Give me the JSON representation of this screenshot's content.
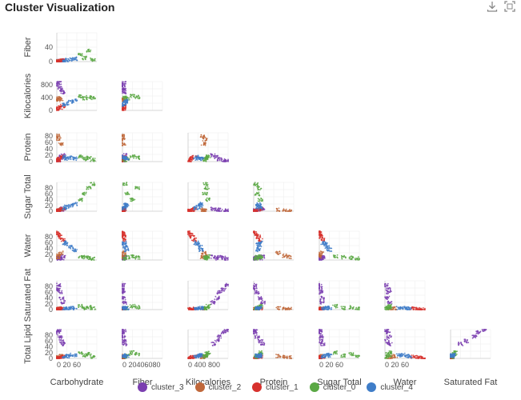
{
  "header": {
    "title": "Cluster Visualization",
    "download_icon": "download-icon",
    "fullscreen_icon": "fullscreen-icon"
  },
  "chart_data": {
    "type": "scatter",
    "kind": "scatter-matrix (lower triangle)",
    "variables": [
      "Carbohydrate",
      "Fiber",
      "Kilocalories",
      "Protein",
      "Sugar Total",
      "Water",
      "Saturated Fat",
      "Total Lipid"
    ],
    "x_variables": [
      "Carbohydrate",
      "Fiber",
      "Kilocalories",
      "Protein",
      "Sugar Total",
      "Water",
      "Saturated Fat"
    ],
    "y_variables": [
      "Fiber",
      "Kilocalories",
      "Protein",
      "Sugar Total",
      "Water",
      "Saturated Fat",
      "Total Lipid"
    ],
    "row_labels": [
      "Fiber",
      "Kilocalories",
      "Protein",
      "Sugar Total",
      "Water",
      "Saturated Fat",
      "Total Lipid"
    ],
    "col_labels": [
      "Carbohydrate",
      "Fiber",
      "Kilocalories",
      "Protein",
      "Sugar Total",
      "Water",
      "Saturated Fat"
    ],
    "ranges": {
      "Carbohydrate": [
        0,
        100
      ],
      "Fiber": [
        0,
        80
      ],
      "Kilocalories": [
        0,
        900
      ],
      "Protein": [
        0,
        90
      ],
      "Sugar Total": [
        0,
        100
      ],
      "Water": [
        0,
        100
      ],
      "Saturated Fat": [
        0,
        100
      ],
      "Total Lipid": [
        0,
        100
      ]
    },
    "y_ticks": {
      "Fiber": [
        "0",
        "40"
      ],
      "Kilocalories": [
        "0",
        "400",
        "800"
      ],
      "Protein": [
        "0",
        "20",
        "40",
        "60",
        "80"
      ],
      "Sugar Total": [
        "0",
        "20",
        "40",
        "60",
        "80"
      ],
      "Water": [
        "0",
        "20",
        "40",
        "60",
        "80"
      ],
      "Saturated Fat": [
        "0",
        "20",
        "40",
        "60",
        "80"
      ],
      "Total Lipid": [
        "0",
        "20",
        "40",
        "60",
        "80"
      ]
    },
    "x_ticks": {
      "Carbohydrate": "0 20  60",
      "Fiber": "0 20406080",
      "Kilocalories": "0  400 800",
      "Sugar Total": "0 20  60",
      "Water": "0 20  60"
    },
    "legend": {
      "placement": "bottom",
      "entries": [
        "cluster_3",
        "cluster_2",
        "cluster_1",
        "cluster_0",
        "cluster_4"
      ]
    },
    "series": [
      {
        "name": "cluster_3",
        "color": "#7b3fb0"
      },
      {
        "name": "cluster_2",
        "color": "#c0683b"
      },
      {
        "name": "cluster_1",
        "color": "#d7312d"
      },
      {
        "name": "cluster_0",
        "color": "#5aa844"
      },
      {
        "name": "cluster_4",
        "color": "#3f7dc8"
      }
    ],
    "grid": true,
    "sample_points": {
      "cluster_3": [
        {
          "Carbohydrate": 5,
          "Fiber": 2,
          "Kilocalories": 870,
          "Protein": 3,
          "Sugar Total": 2,
          "Water": 3,
          "Saturated Fat": 85,
          "Total Lipid": 98
        },
        {
          "Carbohydrate": 8,
          "Fiber": 1,
          "Kilocalories": 700,
          "Protein": 8,
          "Sugar Total": 4,
          "Water": 10,
          "Saturated Fat": 60,
          "Total Lipid": 75
        },
        {
          "Carbohydrate": 12,
          "Fiber": 3,
          "Kilocalories": 650,
          "Protein": 15,
          "Sugar Total": 6,
          "Water": 5,
          "Saturated Fat": 40,
          "Total Lipid": 60
        },
        {
          "Carbohydrate": 3,
          "Fiber": 0,
          "Kilocalories": 800,
          "Protein": 2,
          "Sugar Total": 1,
          "Water": 8,
          "Saturated Fat": 70,
          "Total Lipid": 90
        },
        {
          "Carbohydrate": 15,
          "Fiber": 4,
          "Kilocalories": 560,
          "Protein": 20,
          "Sugar Total": 8,
          "Water": 12,
          "Saturated Fat": 25,
          "Total Lipid": 50
        }
      ],
      "cluster_2": [
        {
          "Carbohydrate": 4,
          "Fiber": 1,
          "Kilocalories": 380,
          "Protein": 70,
          "Sugar Total": 2,
          "Water": 15,
          "Saturated Fat": 3,
          "Total Lipid": 5
        },
        {
          "Carbohydrate": 10,
          "Fiber": 2,
          "Kilocalories": 350,
          "Protein": 55,
          "Sugar Total": 5,
          "Water": 25,
          "Saturated Fat": 4,
          "Total Lipid": 8
        },
        {
          "Carbohydrate": 2,
          "Fiber": 0,
          "Kilocalories": 330,
          "Protein": 80,
          "Sugar Total": 1,
          "Water": 10,
          "Saturated Fat": 2,
          "Total Lipid": 3
        }
      ],
      "cluster_1": [
        {
          "Carbohydrate": 3,
          "Fiber": 1,
          "Kilocalories": 60,
          "Protein": 5,
          "Sugar Total": 2,
          "Water": 88,
          "Saturated Fat": 1,
          "Total Lipid": 2
        },
        {
          "Carbohydrate": 8,
          "Fiber": 2,
          "Kilocalories": 90,
          "Protein": 10,
          "Sugar Total": 4,
          "Water": 80,
          "Saturated Fat": 2,
          "Total Lipid": 4
        },
        {
          "Carbohydrate": 15,
          "Fiber": 3,
          "Kilocalories": 140,
          "Protein": 15,
          "Sugar Total": 8,
          "Water": 70,
          "Saturated Fat": 3,
          "Total Lipid": 6
        },
        {
          "Carbohydrate": 1,
          "Fiber": 0,
          "Kilocalories": 30,
          "Protein": 2,
          "Sugar Total": 1,
          "Water": 95,
          "Saturated Fat": 0,
          "Total Lipid": 1
        }
      ],
      "cluster_0": [
        {
          "Carbohydrate": 70,
          "Fiber": 10,
          "Kilocalories": 380,
          "Protein": 8,
          "Sugar Total": 60,
          "Water": 10,
          "Saturated Fat": 5,
          "Total Lipid": 10
        },
        {
          "Carbohydrate": 80,
          "Fiber": 30,
          "Kilocalories": 420,
          "Protein": 12,
          "Sugar Total": 80,
          "Water": 8,
          "Saturated Fat": 8,
          "Total Lipid": 15
        },
        {
          "Carbohydrate": 60,
          "Fiber": 20,
          "Kilocalories": 450,
          "Protein": 15,
          "Sugar Total": 40,
          "Water": 12,
          "Saturated Fat": 12,
          "Total Lipid": 20
        },
        {
          "Carbohydrate": 90,
          "Fiber": 5,
          "Kilocalories": 390,
          "Protein": 5,
          "Sugar Total": 95,
          "Water": 5,
          "Saturated Fat": 3,
          "Total Lipid": 5
        }
      ],
      "cluster_4": [
        {
          "Carbohydrate": 25,
          "Fiber": 4,
          "Kilocalories": 220,
          "Protein": 10,
          "Sugar Total": 15,
          "Water": 55,
          "Saturated Fat": 4,
          "Total Lipid": 8
        },
        {
          "Carbohydrate": 35,
          "Fiber": 6,
          "Kilocalories": 280,
          "Protein": 12,
          "Sugar Total": 20,
          "Water": 45,
          "Saturated Fat": 6,
          "Total Lipid": 12
        },
        {
          "Carbohydrate": 45,
          "Fiber": 8,
          "Kilocalories": 300,
          "Protein": 9,
          "Sugar Total": 25,
          "Water": 35,
          "Saturated Fat": 5,
          "Total Lipid": 10
        },
        {
          "Carbohydrate": 20,
          "Fiber": 3,
          "Kilocalories": 180,
          "Protein": 14,
          "Sugar Total": 10,
          "Water": 60,
          "Saturated Fat": 3,
          "Total Lipid": 7
        }
      ]
    }
  }
}
